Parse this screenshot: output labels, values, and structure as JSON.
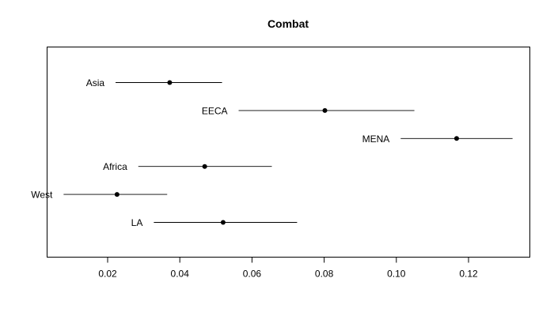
{
  "chart_data": {
    "type": "dotplot-interval",
    "title": "Combat",
    "xlabel": "",
    "ylabel": "",
    "xlim": [
      0.003,
      0.135
    ],
    "x_ticks": [
      0.02,
      0.04,
      0.06,
      0.08,
      0.1,
      0.12
    ],
    "x_tick_labels": [
      "0.02",
      "0.04",
      "0.06",
      "0.08",
      "0.10",
      "0.12"
    ],
    "grid": false,
    "series": [
      {
        "category": "Asia",
        "estimate": 0.0372,
        "lower": 0.0222,
        "upper": 0.0517
      },
      {
        "category": "EECA",
        "estimate": 0.0802,
        "lower": 0.0563,
        "upper": 0.105
      },
      {
        "category": "MENA",
        "estimate": 0.1167,
        "lower": 0.1012,
        "upper": 0.1322
      },
      {
        "category": "Africa",
        "estimate": 0.0469,
        "lower": 0.0285,
        "upper": 0.0655
      },
      {
        "category": "West",
        "estimate": 0.0226,
        "lower": 0.0078,
        "upper": 0.0365
      },
      {
        "category": "LA",
        "estimate": 0.052,
        "lower": 0.0328,
        "upper": 0.0725
      }
    ]
  }
}
